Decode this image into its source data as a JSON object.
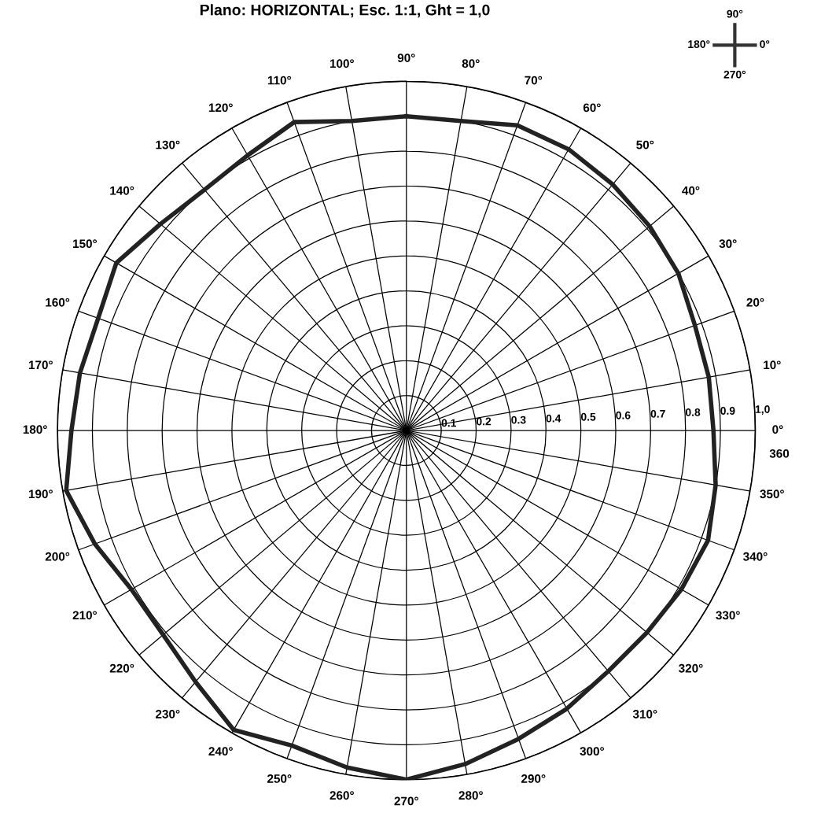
{
  "chart_data": {
    "type": "radar",
    "title": "Plano: HORIZONTAL; Esc. 1:1, Ght = 1,0",
    "categories": [
      "90°",
      "80°",
      "70°",
      "60°",
      "50°",
      "40°",
      "30°",
      "20°",
      "10°",
      "0°",
      "350°",
      "340°",
      "330°",
      "320°",
      "310°",
      "300°",
      "290°",
      "280°",
      "270°",
      "260°",
      "250°",
      "240°",
      "230°",
      "220°",
      "210°",
      "200°",
      "190°",
      "180°",
      "170°",
      "160°",
      "150°",
      "140°",
      "130°",
      "120°",
      "110°",
      "100°"
    ],
    "series": [
      {
        "color": "#222222",
        "values": [
          0.9,
          0.9,
          0.93,
          0.93,
          0.92,
          0.91,
          0.9,
          0.88,
          0.88,
          0.88,
          0.9,
          0.92,
          0.91,
          0.9,
          0.9,
          0.92,
          0.94,
          0.97,
          1.0,
          0.98,
          0.96,
          0.99,
          0.94,
          0.91,
          0.91,
          0.95,
          0.99,
          0.96,
          0.95,
          0.94,
          0.96,
          0.92,
          0.9,
          0.91,
          0.94,
          0.9
        ]
      }
    ],
    "ylim": [
      0,
      1
    ],
    "yticks": [
      {
        "value": 0.1,
        "label": "0.1"
      },
      {
        "value": 0.2,
        "label": "0.2"
      },
      {
        "value": 0.3,
        "label": "0.3"
      },
      {
        "value": 0.4,
        "label": "0.4"
      },
      {
        "value": 0.5,
        "label": "0.5"
      },
      {
        "value": 0.6,
        "label": "0.6"
      },
      {
        "value": 0.7,
        "label": "0.7"
      },
      {
        "value": 0.8,
        "label": "0.8"
      },
      {
        "value": 0.9,
        "label": "0.9"
      },
      {
        "value": 1,
        "label": "1,0"
      }
    ],
    "grid": true,
    "line_style": "solid",
    "marker": "none",
    "annotations": [
      "360",
      "90°",
      "180°",
      "0°",
      "270°"
    ]
  }
}
